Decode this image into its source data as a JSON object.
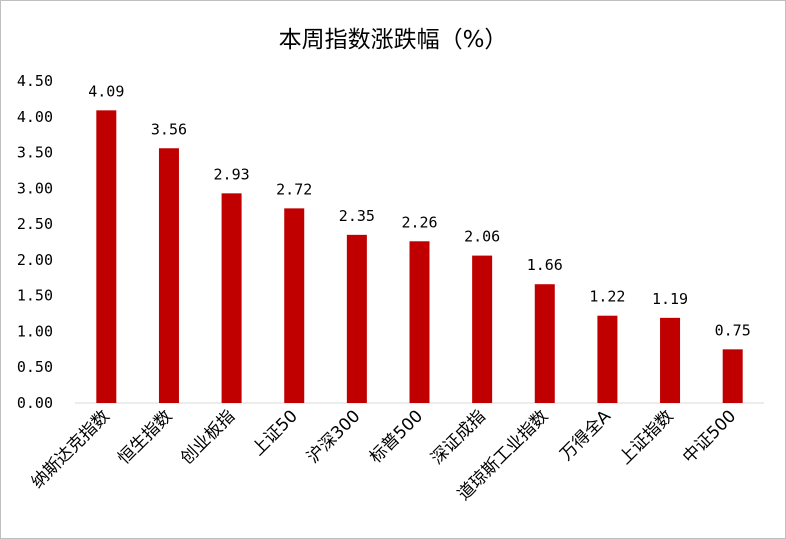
{
  "chart_data": {
    "type": "bar",
    "title": "本周指数涨跌幅（%）",
    "categories": [
      "纳斯达克指数",
      "恒生指数",
      "创业板指",
      "上证50",
      "沪深300",
      "标普500",
      "深证成指",
      "道琼斯工业指数",
      "万得全A",
      "上证指数",
      "中证500"
    ],
    "values": [
      4.09,
      3.56,
      2.93,
      2.72,
      2.35,
      2.26,
      2.06,
      1.66,
      1.22,
      1.19,
      0.75
    ],
    "value_labels": [
      "4.09",
      "3.56",
      "2.93",
      "2.72",
      "2.35",
      "2.26",
      "2.06",
      "1.66",
      "1.22",
      "1.19",
      "0.75"
    ],
    "yticks": [
      "0.00",
      "0.50",
      "1.00",
      "1.50",
      "2.00",
      "2.50",
      "3.00",
      "3.50",
      "4.00",
      "4.50"
    ],
    "ylim": [
      0,
      4.5
    ],
    "grid": false,
    "xlabel": "",
    "ylabel": "",
    "bar_color": "#C00000",
    "axis_color": "#d9d9d9"
  }
}
